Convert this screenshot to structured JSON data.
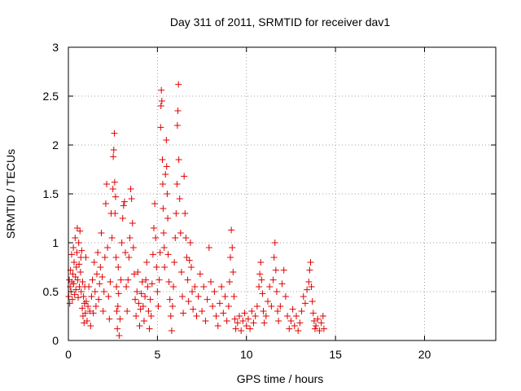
{
  "chart_data": {
    "type": "scatter",
    "title": "Day 311 of 2011, SRMTID for receiver dav1",
    "xlabel": "GPS time / hours",
    "ylabel": "SRMTID / TECUs",
    "xlim": [
      0,
      24
    ],
    "ylim": [
      0,
      3
    ],
    "xticks": [
      0,
      5,
      10,
      15,
      20
    ],
    "yticks": [
      0,
      0.5,
      1,
      1.5,
      2,
      2.5,
      3
    ],
    "ytick_labels": [
      "0",
      "0.5",
      "1",
      "1.5",
      "2",
      "2.5",
      "3"
    ],
    "grid": true,
    "marker": "+",
    "color": "#e00000",
    "series": [
      {
        "name": "SRMTID",
        "points": [
          [
            0.02,
            0.45
          ],
          [
            0.05,
            0.62
          ],
          [
            0.08,
            0.38
          ],
          [
            0.1,
            0.55
          ],
          [
            0.12,
            0.72
          ],
          [
            0.15,
            0.5
          ],
          [
            0.18,
            0.88
          ],
          [
            0.2,
            0.6
          ],
          [
            0.22,
            0.42
          ],
          [
            0.25,
            0.68
          ],
          [
            0.28,
            0.95
          ],
          [
            0.3,
            0.58
          ],
          [
            0.32,
            0.8
          ],
          [
            0.35,
            0.47
          ],
          [
            0.38,
            1.05
          ],
          [
            0.4,
            0.65
          ],
          [
            0.42,
            0.52
          ],
          [
            0.45,
            0.75
          ],
          [
            0.48,
            0.9
          ],
          [
            0.5,
            1.15
          ],
          [
            0.52,
            0.62
          ],
          [
            0.55,
            0.44
          ],
          [
            0.58,
            1.0
          ],
          [
            0.6,
            0.78
          ],
          [
            0.62,
            0.55
          ],
          [
            0.65,
            1.12
          ],
          [
            0.68,
            0.7
          ],
          [
            0.7,
            0.85
          ],
          [
            0.72,
            0.5
          ],
          [
            0.75,
            0.92
          ],
          [
            0.78,
            0.33
          ],
          [
            0.8,
            0.6
          ],
          [
            0.82,
            0.25
          ],
          [
            0.85,
            0.45
          ],
          [
            0.88,
            0.18
          ],
          [
            0.9,
            0.38
          ],
          [
            0.92,
            0.55
          ],
          [
            0.95,
            0.28
          ],
          [
            0.98,
            0.85
          ],
          [
            1.0,
            0.4
          ],
          [
            1.05,
            0.2
          ],
          [
            1.1,
            0.35
          ],
          [
            1.15,
            0.55
          ],
          [
            1.2,
            0.3
          ],
          [
            1.25,
            0.15
          ],
          [
            1.3,
            0.45
          ],
          [
            1.35,
            0.62
          ],
          [
            1.4,
            0.28
          ],
          [
            1.45,
            0.8
          ],
          [
            1.5,
            0.5
          ],
          [
            1.55,
            0.35
          ],
          [
            1.6,
            0.68
          ],
          [
            1.65,
            0.9
          ],
          [
            1.7,
            0.42
          ],
          [
            1.75,
            0.58
          ],
          [
            1.8,
            0.75
          ],
          [
            1.85,
            1.1
          ],
          [
            1.9,
            0.65
          ],
          [
            1.95,
            0.3
          ],
          [
            2.0,
            0.5
          ],
          [
            2.05,
            0.85
          ],
          [
            2.1,
            1.4
          ],
          [
            2.15,
            1.6
          ],
          [
            2.2,
            0.95
          ],
          [
            2.25,
            0.45
          ],
          [
            2.3,
            0.22
          ],
          [
            2.35,
            0.6
          ],
          [
            2.4,
            1.3
          ],
          [
            2.45,
            1.05
          ],
          [
            2.5,
            1.55
          ],
          [
            2.52,
            1.88
          ],
          [
            2.55,
            1.95
          ],
          [
            2.58,
            2.12
          ],
          [
            2.6,
            1.62
          ],
          [
            2.62,
            1.3
          ],
          [
            2.65,
            1.47
          ],
          [
            2.68,
            0.85
          ],
          [
            2.7,
            0.55
          ],
          [
            2.72,
            0.3
          ],
          [
            2.75,
            0.12
          ],
          [
            2.78,
            0.35
          ],
          [
            2.8,
            0.75
          ],
          [
            2.82,
            0.48
          ],
          [
            2.85,
            0.05
          ],
          [
            2.9,
            0.22
          ],
          [
            2.95,
            0.62
          ],
          [
            3.0,
            1.0
          ],
          [
            3.05,
            1.25
          ],
          [
            3.1,
            1.38
          ],
          [
            3.15,
            1.42
          ],
          [
            3.2,
            0.9
          ],
          [
            3.25,
            0.55
          ],
          [
            3.3,
            0.3
          ],
          [
            3.35,
            0.62
          ],
          [
            3.4,
            0.85
          ],
          [
            3.45,
            1.05
          ],
          [
            3.5,
            1.55
          ],
          [
            3.55,
            1.45
          ],
          [
            3.6,
            1.2
          ],
          [
            3.65,
            0.95
          ],
          [
            3.7,
            0.68
          ],
          [
            3.75,
            0.42
          ],
          [
            3.8,
            0.25
          ],
          [
            3.85,
            0.5
          ],
          [
            3.9,
            0.7
          ],
          [
            3.95,
            0.38
          ],
          [
            4.0,
            0.15
          ],
          [
            4.05,
            0.32
          ],
          [
            4.1,
            0.48
          ],
          [
            4.15,
            0.6
          ],
          [
            4.2,
            0.35
          ],
          [
            4.25,
            0.2
          ],
          [
            4.3,
            0.45
          ],
          [
            4.35,
            0.62
          ],
          [
            4.4,
            0.8
          ],
          [
            4.45,
            0.55
          ],
          [
            4.5,
            0.3
          ],
          [
            4.55,
            0.12
          ],
          [
            4.6,
            0.42
          ],
          [
            4.65,
            0.25
          ],
          [
            4.7,
            0.58
          ],
          [
            4.75,
            0.88
          ],
          [
            4.8,
            1.15
          ],
          [
            4.85,
            1.4
          ],
          [
            4.9,
            1.05
          ],
          [
            4.95,
            0.75
          ],
          [
            5.0,
            0.5
          ],
          [
            5.05,
            0.35
          ],
          [
            5.1,
            0.62
          ],
          [
            5.15,
            0.9
          ],
          [
            5.18,
            2.18
          ],
          [
            5.2,
            2.4
          ],
          [
            5.22,
            2.56
          ],
          [
            5.25,
            2.45
          ],
          [
            5.28,
            1.85
          ],
          [
            5.3,
            1.6
          ],
          [
            5.32,
            1.35
          ],
          [
            5.35,
            1.1
          ],
          [
            5.38,
            0.95
          ],
          [
            5.4,
            0.75
          ],
          [
            5.45,
            1.7
          ],
          [
            5.5,
            2.05
          ],
          [
            5.52,
            1.78
          ],
          [
            5.55,
            1.5
          ],
          [
            5.58,
            1.25
          ],
          [
            5.6,
            0.88
          ],
          [
            5.65,
            0.6
          ],
          [
            5.7,
            0.42
          ],
          [
            5.75,
            0.25
          ],
          [
            5.8,
            0.1
          ],
          [
            5.85,
            0.35
          ],
          [
            5.9,
            0.55
          ],
          [
            5.95,
            0.8
          ],
          [
            6.0,
            1.05
          ],
          [
            6.05,
            1.3
          ],
          [
            6.1,
            1.6
          ],
          [
            6.12,
            2.2
          ],
          [
            6.15,
            2.35
          ],
          [
            6.18,
            2.62
          ],
          [
            6.2,
            1.85
          ],
          [
            6.25,
            1.45
          ],
          [
            6.3,
            1.1
          ],
          [
            6.35,
            0.7
          ],
          [
            6.4,
            0.45
          ],
          [
            6.45,
            0.28
          ],
          [
            6.5,
            1.68
          ],
          [
            6.55,
            1.3
          ],
          [
            6.6,
            1.05
          ],
          [
            6.65,
            0.85
          ],
          [
            6.7,
            0.62
          ],
          [
            6.75,
            0.4
          ],
          [
            6.8,
            0.82
          ],
          [
            6.85,
            1.0
          ],
          [
            6.9,
            0.75
          ],
          [
            6.95,
            0.5
          ],
          [
            7.0,
            0.32
          ],
          [
            7.1,
            0.55
          ],
          [
            7.2,
            0.25
          ],
          [
            7.3,
            0.45
          ],
          [
            7.4,
            0.68
          ],
          [
            7.5,
            0.3
          ],
          [
            7.6,
            0.55
          ],
          [
            7.7,
            0.2
          ],
          [
            7.8,
            0.42
          ],
          [
            7.9,
            0.95
          ],
          [
            8.0,
            0.6
          ],
          [
            8.1,
            0.35
          ],
          [
            8.2,
            0.5
          ],
          [
            8.3,
            0.25
          ],
          [
            8.4,
            0.15
          ],
          [
            8.5,
            0.38
          ],
          [
            8.6,
            0.55
          ],
          [
            8.7,
            0.28
          ],
          [
            8.8,
            0.45
          ],
          [
            8.9,
            0.2
          ],
          [
            9.0,
            0.35
          ],
          [
            9.05,
            0.6
          ],
          [
            9.1,
            0.85
          ],
          [
            9.15,
            1.13
          ],
          [
            9.2,
            0.95
          ],
          [
            9.25,
            0.7
          ],
          [
            9.3,
            0.45
          ],
          [
            9.35,
            0.22
          ],
          [
            9.4,
            0.12
          ],
          [
            9.5,
            0.18
          ],
          [
            9.6,
            0.25
          ],
          [
            9.7,
            0.1
          ],
          [
            9.8,
            0.2
          ],
          [
            9.9,
            0.28
          ],
          [
            10.0,
            0.15
          ],
          [
            10.1,
            0.22
          ],
          [
            10.2,
            0.12
          ],
          [
            10.3,
            0.3
          ],
          [
            10.4,
            0.18
          ],
          [
            10.5,
            0.25
          ],
          [
            10.6,
            0.35
          ],
          [
            10.7,
            0.55
          ],
          [
            10.75,
            0.68
          ],
          [
            10.8,
            0.8
          ],
          [
            10.85,
            0.62
          ],
          [
            10.9,
            0.48
          ],
          [
            10.95,
            0.3
          ],
          [
            11.0,
            0.18
          ],
          [
            11.1,
            0.25
          ],
          [
            11.2,
            0.4
          ],
          [
            11.3,
            0.55
          ],
          [
            11.4,
            0.35
          ],
          [
            11.5,
            0.62
          ],
          [
            11.55,
            0.85
          ],
          [
            11.6,
            1.0
          ],
          [
            11.65,
            0.72
          ],
          [
            11.7,
            0.5
          ],
          [
            11.75,
            0.3
          ],
          [
            11.8,
            0.2
          ],
          [
            11.9,
            0.35
          ],
          [
            12.0,
            0.58
          ],
          [
            12.1,
            0.72
          ],
          [
            12.2,
            0.45
          ],
          [
            12.3,
            0.25
          ],
          [
            12.4,
            0.12
          ],
          [
            12.5,
            0.2
          ],
          [
            12.6,
            0.32
          ],
          [
            12.7,
            0.15
          ],
          [
            12.8,
            0.25
          ],
          [
            12.9,
            0.1
          ],
          [
            13.0,
            0.18
          ],
          [
            13.1,
            0.3
          ],
          [
            13.2,
            0.45
          ],
          [
            13.3,
            0.38
          ],
          [
            13.4,
            0.52
          ],
          [
            13.5,
            0.6
          ],
          [
            13.55,
            0.72
          ],
          [
            13.6,
            0.8
          ],
          [
            13.65,
            0.55
          ],
          [
            13.7,
            0.4
          ],
          [
            13.75,
            0.28
          ],
          [
            13.8,
            0.2
          ],
          [
            13.85,
            0.12
          ],
          [
            13.9,
            0.15
          ],
          [
            14.0,
            0.22
          ],
          [
            14.1,
            0.1
          ],
          [
            14.2,
            0.18
          ],
          [
            14.3,
            0.25
          ],
          [
            14.35,
            0.12
          ]
        ]
      }
    ]
  }
}
